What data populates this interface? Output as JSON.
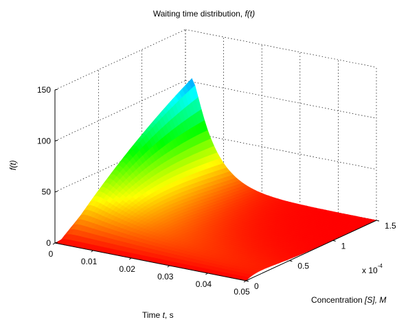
{
  "chart_data": {
    "type": "surface",
    "title_prefix": "Waiting time distribution, ",
    "title_math": "f(t)",
    "zlabel": "f(t)",
    "xlabel_prefix": "Time ",
    "xlabel_var": "t",
    "xlabel_unit": ", s",
    "ylabel_prefix": "Concentration ",
    "ylabel_math": "[S], M",
    "y_exponent_base": "x 10",
    "y_exponent": "-4",
    "xlim": [
      0,
      0.05
    ],
    "ylim": [
      0,
      1.5
    ],
    "zlim": [
      0,
      150
    ],
    "xticks": [
      "0",
      "0.01",
      "0.02",
      "0.03",
      "0.04",
      "0.05"
    ],
    "yticks": [
      "0",
      "0.5",
      "1",
      "1.5"
    ],
    "zticks": [
      "0",
      "50",
      "100",
      "150"
    ],
    "grid": true,
    "colormap": "hsv",
    "surface_samples": {
      "y_values": [
        0,
        0.25,
        0.5,
        0.75,
        1.0,
        1.25,
        1.5
      ],
      "x_values": [
        0,
        0.005,
        0.01,
        0.02,
        0.03,
        0.04,
        0.05
      ],
      "z_values": [
        [
          0,
          2,
          3,
          3,
          2.5,
          2,
          1.5
        ],
        [
          0,
          14,
          14,
          8,
          5,
          3,
          2
        ],
        [
          0,
          32,
          24,
          10,
          5,
          2.5,
          1
        ],
        [
          0,
          55,
          30,
          9,
          3,
          1,
          0.3
        ],
        [
          0,
          80,
          32,
          7,
          2,
          0.5,
          0.1
        ],
        [
          0,
          110,
          32,
          5,
          1,
          0.2,
          0.05
        ],
        [
          0,
          145,
          30,
          3,
          0.5,
          0.1,
          0
        ]
      ]
    }
  }
}
